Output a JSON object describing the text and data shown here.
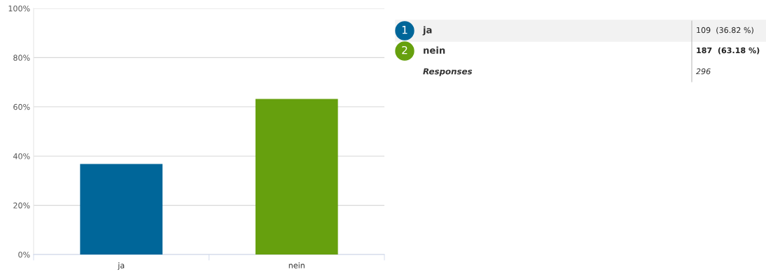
{
  "chart_data": {
    "type": "bar",
    "categories": [
      "ja",
      "nein"
    ],
    "values": [
      36.82,
      63.18
    ],
    "colors": [
      "#006699",
      "#66a00e"
    ],
    "ylim": [
      0,
      100
    ],
    "yticks": [
      {
        "value": 0,
        "label": "0%"
      },
      {
        "value": 20,
        "label": "20%"
      },
      {
        "value": 40,
        "label": "40%"
      },
      {
        "value": 60,
        "label": "60%"
      },
      {
        "value": 80,
        "label": "80%"
      },
      {
        "value": 100,
        "label": "100%"
      }
    ],
    "grid": "y",
    "annotations": [
      "1",
      "2",
      "109  (36.82 %)",
      "187  (63.18 %)",
      "Responses",
      "296"
    ]
  }
}
